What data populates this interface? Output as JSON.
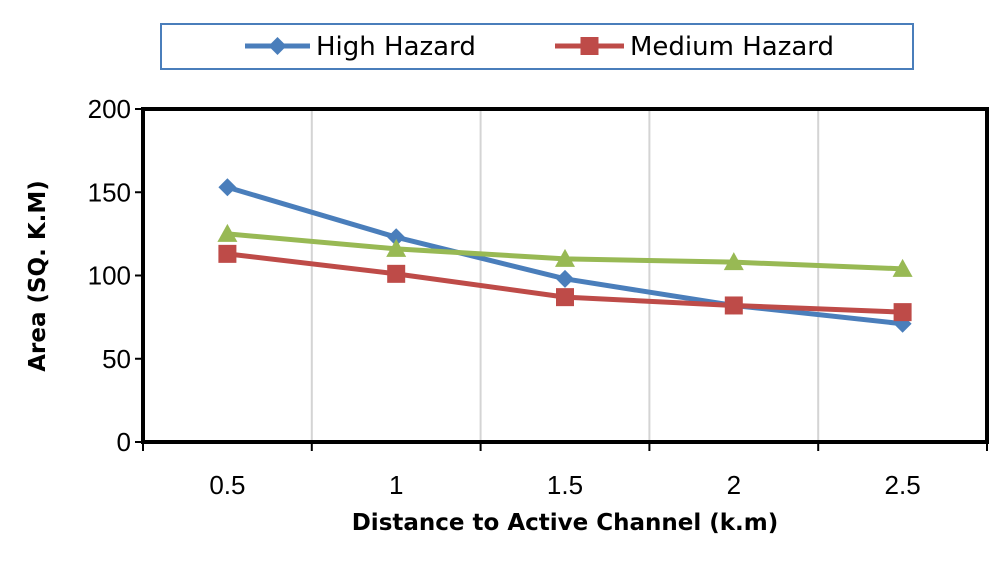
{
  "chart_data": {
    "type": "line",
    "title": "",
    "xlabel": "Distance to Active Channel (k.m)",
    "ylabel": "Area (SQ. K.M)",
    "categories": [
      "0.5",
      "1",
      "1.5",
      "2",
      "2.5"
    ],
    "ylim": [
      0,
      200
    ],
    "yticks": [
      "0",
      "50",
      "100",
      "150",
      "200"
    ],
    "grid": "vertical",
    "legend_position": "top",
    "series": [
      {
        "name": "High Hazard",
        "color": "#4A7EBB",
        "marker": "diamond",
        "values": [
          153,
          123,
          98,
          82,
          71
        ]
      },
      {
        "name": "Medium Hazard",
        "color": "#BE4B48",
        "marker": "square",
        "values": [
          113,
          101,
          87,
          82,
          78
        ]
      },
      {
        "color": "#98B954",
        "marker": "triangle",
        "values": [
          125,
          116,
          110,
          108,
          104
        ]
      }
    ]
  }
}
